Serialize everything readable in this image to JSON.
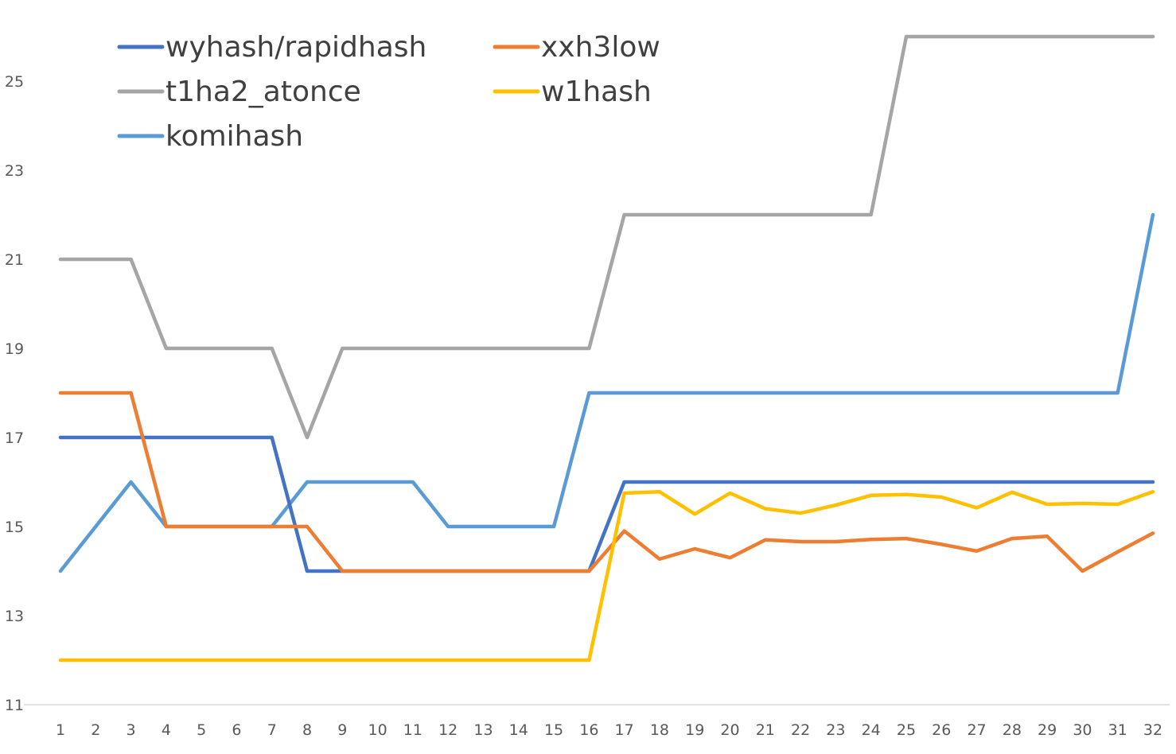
{
  "chart_data": {
    "type": "line",
    "title": "",
    "xlabel": "",
    "ylabel": "",
    "x": [
      1,
      2,
      3,
      4,
      5,
      6,
      7,
      8,
      9,
      10,
      11,
      12,
      13,
      14,
      15,
      16,
      17,
      18,
      19,
      20,
      21,
      22,
      23,
      24,
      25,
      26,
      27,
      28,
      29,
      30,
      31,
      32
    ],
    "ylim": [
      11,
      26
    ],
    "yticks": [
      11,
      13,
      15,
      17,
      19,
      21,
      23,
      25
    ],
    "grid": false,
    "legend_position": "top-left",
    "series": [
      {
        "name": "wyhash/rapidhash",
        "color": "#4472C4",
        "values": [
          17,
          17,
          17,
          17,
          17,
          17,
          17,
          14,
          14,
          14,
          14,
          14,
          14,
          14,
          14,
          14,
          16,
          16,
          16,
          16,
          16,
          16,
          16,
          16,
          16,
          16,
          16,
          16,
          16,
          16,
          16,
          16
        ]
      },
      {
        "name": "xxh3low",
        "color": "#ED7D31",
        "values": [
          18,
          18,
          18,
          15,
          15,
          15,
          15,
          15,
          14,
          14,
          14,
          14,
          14,
          14,
          14,
          14,
          14.9,
          14.27,
          14.5,
          14.3,
          14.7,
          14.66,
          14.66,
          14.71,
          14.73,
          14.6,
          14.45,
          14.73,
          14.78,
          14,
          14.43,
          14.85
        ]
      },
      {
        "name": "t1ha2_atonce",
        "color": "#A5A5A5",
        "values": [
          21,
          21,
          21,
          19,
          19,
          19,
          19,
          17,
          19,
          19,
          19,
          19,
          19,
          19,
          19,
          19,
          22,
          22,
          22,
          22,
          22,
          22,
          22,
          22,
          26,
          26,
          26,
          26,
          26,
          26,
          26,
          26
        ]
      },
      {
        "name": "w1hash",
        "color": "#FFC000",
        "values": [
          12,
          12,
          12,
          12,
          12,
          12,
          12,
          12,
          12,
          12,
          12,
          12,
          12,
          12,
          12,
          12,
          15.75,
          15.78,
          15.28,
          15.75,
          15.4,
          15.3,
          15.48,
          15.7,
          15.72,
          15.66,
          15.42,
          15.77,
          15.5,
          15.52,
          15.5,
          15.78
        ]
      },
      {
        "name": "komihash",
        "color": "#5B9BD5",
        "values": [
          14,
          15,
          16,
          15,
          15,
          15,
          15,
          16,
          16,
          16,
          16,
          15,
          15,
          15,
          15,
          18,
          18,
          18,
          18,
          18,
          18,
          18,
          18,
          18,
          18,
          18,
          18,
          18,
          18,
          18,
          18,
          22
        ]
      }
    ]
  }
}
